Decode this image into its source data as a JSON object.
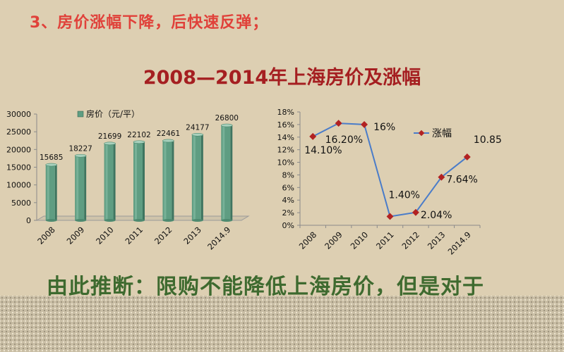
{
  "page": {
    "heading": "3、房价涨幅下降，后快速反弹；",
    "title": "2008—2014年上海房价及涨幅",
    "conclusion": "由此推断：限购不能降低上海房价，但是对于"
  },
  "colors": {
    "heading": "#e0413a",
    "title": "#a51f21",
    "conclusion": "#3e6a2f",
    "bar": "#5f9d82",
    "line": "#4a7cc9",
    "marker": "#b22222"
  },
  "chart_data": [
    {
      "type": "bar",
      "legend": "房价（元/平）",
      "legend_position": "top",
      "categories": [
        "2008",
        "2009",
        "2010",
        "2011",
        "2012",
        "2013",
        "2014.9"
      ],
      "series": [
        {
          "name": "房价（元/平）",
          "values": [
            15685,
            18227,
            21699,
            22102,
            22461,
            24177,
            26800
          ]
        }
      ],
      "ylim": [
        0,
        30000
      ],
      "yticks": [
        "0",
        "5000",
        "10000",
        "15000",
        "20000",
        "25000",
        "30000"
      ],
      "data_labels": [
        "15685",
        "18227",
        "21699",
        "22102",
        "22461",
        "24177",
        "26800"
      ],
      "grid": false
    },
    {
      "type": "line",
      "legend": "涨幅",
      "legend_position": "top-right",
      "categories": [
        "2008",
        "2009",
        "2010",
        "2011",
        "2012",
        "2013",
        "2014.9"
      ],
      "series": [
        {
          "name": "涨幅",
          "values": [
            14.1,
            16.2,
            16.0,
            1.4,
            2.04,
            7.64,
            10.85
          ]
        }
      ],
      "ylim": [
        0,
        18
      ],
      "yticks": [
        "0%",
        "2%",
        "4%",
        "6%",
        "8%",
        "10%",
        "12%",
        "14%",
        "16%",
        "18%"
      ],
      "data_labels": [
        "14.10%",
        "16.20%",
        "16%",
        "1.40%",
        "2.04%",
        "7.64%",
        "10.85%"
      ],
      "grid": false
    }
  ]
}
